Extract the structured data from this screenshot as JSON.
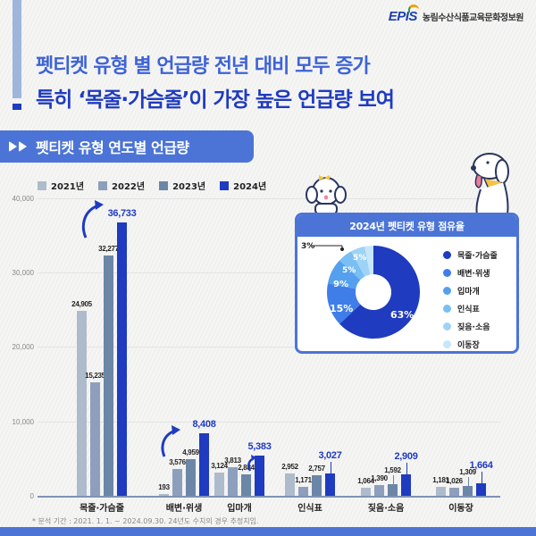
{
  "header": {
    "org_logo": "EPIS",
    "org_name": "농림수산식품교육문화정보원",
    "title_line1": "펫티켓 유형 별 언급량 전년 대비 모두 증가",
    "title_line2": "특히 ‘목줄·가슴줄’이 가장 높은 언급량 보여"
  },
  "section": {
    "banner_title": "펫티켓 유형 연도별 언급량"
  },
  "colors": {
    "2021": "#aebbcc",
    "2022": "#8d9fbd",
    "2023": "#6b86a6",
    "2024": "#1f3bbf",
    "accent": "#4b74d6"
  },
  "chart_data": [
    {
      "type": "bar",
      "title": "펫티켓 유형 연도별 언급량",
      "categories": [
        "목줄·가슴줄",
        "배변·위생",
        "입마개",
        "인식표",
        "짖음·소음",
        "이동장"
      ],
      "series": [
        {
          "name": "2021년",
          "values": [
            24905,
            193,
            3124,
            2952,
            1064,
            1181
          ]
        },
        {
          "name": "2022년",
          "values": [
            15235,
            3576,
            3813,
            1171,
            1390,
            1026
          ]
        },
        {
          "name": "2023년",
          "values": [
            32277,
            4959,
            2884,
            2757,
            1592,
            1309
          ]
        },
        {
          "name": "2024년",
          "values": [
            36733,
            8408,
            5383,
            3027,
            2909,
            1664
          ]
        }
      ],
      "xlabel": "",
      "ylabel": "",
      "ylim": [
        0,
        40000
      ],
      "yticks": [
        "0",
        "10,000",
        "20,000",
        "30,000",
        "40,000"
      ],
      "grid": true,
      "legend_position": "top-left"
    },
    {
      "type": "pie",
      "title": "2024년 펫티켓 유형 점유율",
      "categories": [
        "목줄·가슴줄",
        "배변·위생",
        "입마개",
        "인식표",
        "짖음·소음",
        "이동장"
      ],
      "values": [
        63,
        15,
        9,
        5,
        5,
        3
      ],
      "unit": "%",
      "donut": true,
      "legend_position": "right"
    }
  ],
  "bar_chart": {
    "legend": [
      "2021년",
      "2022년",
      "2023년",
      "2024년"
    ],
    "y_ticks": [
      "40,000",
      "30,000",
      "20,000",
      "10,000",
      "0"
    ],
    "categories": [
      "목줄·가슴줄",
      "배변·위생",
      "입마개",
      "인식표",
      "짖음·소음",
      "이동장"
    ],
    "labels": [
      [
        "24,905",
        "15,235",
        "32,277",
        "36,733"
      ],
      [
        "193",
        "3,576",
        "4,959",
        "8,408"
      ],
      [
        "3,124",
        "3,813",
        "2,884",
        "5,383"
      ],
      [
        "2,952",
        "1,171",
        "2,757",
        "3,027"
      ],
      [
        "1,064",
        "1,390",
        "1,592",
        "2,909"
      ],
      [
        "1,181",
        "1,026",
        "1,309",
        "1,664"
      ]
    ]
  },
  "pie_chart": {
    "title": "2024년 펫티켓 유형 점유율",
    "slice_labels": [
      "63%",
      "15%",
      "9%",
      "5%",
      "5%",
      "3%"
    ],
    "legend": [
      "목줄·가슴줄",
      "배변·위생",
      "입마개",
      "인식표",
      "짖음·소음",
      "이동장"
    ],
    "colors": [
      "#1f3bbf",
      "#3f7ee8",
      "#55a0ee",
      "#79bff3",
      "#9fd3f6",
      "#c6e6fa"
    ]
  },
  "footnote": "* 분석 기간 : 2021. 1. 1. ~ 2024.09.30. 24년도 수치의 경우 추정치임."
}
